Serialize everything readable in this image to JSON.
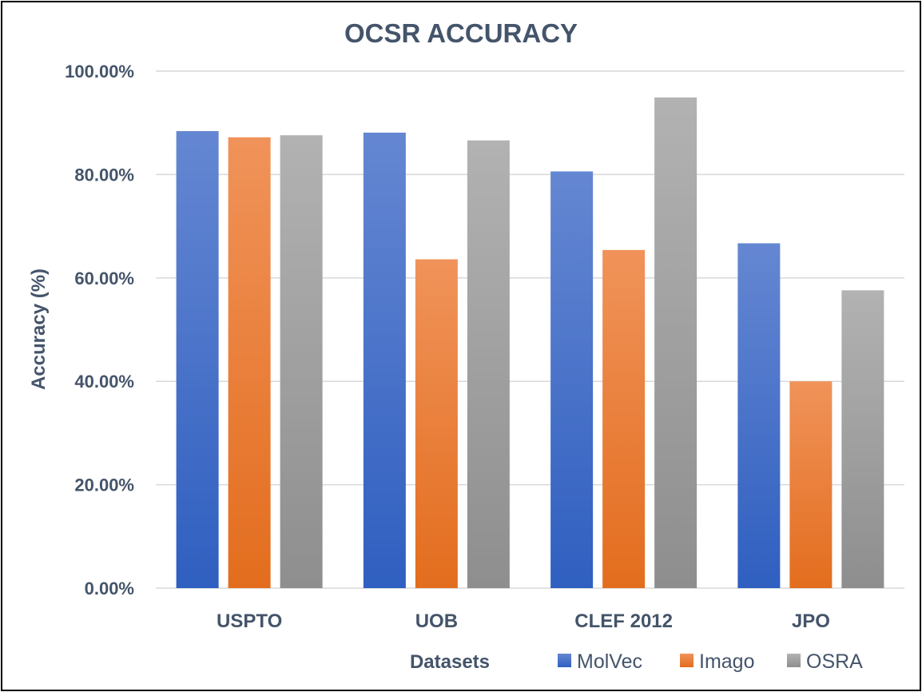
{
  "chart_data": {
    "type": "bar",
    "title": "OCSR ACCURACY",
    "xlabel": "Datasets",
    "ylabel": "Accuracy (%)",
    "categories": [
      "USPTO",
      "UOB",
      "CLEF 2012",
      "JPO"
    ],
    "series": [
      {
        "name": "MolVec",
        "values": [
          88.4,
          88.1,
          80.6,
          66.7
        ],
        "color": "#4472c4"
      },
      {
        "name": "Imago",
        "values": [
          87.2,
          63.6,
          65.4,
          40.0
        ],
        "color": "#ed7d31"
      },
      {
        "name": "OSRA",
        "values": [
          87.6,
          86.6,
          94.9,
          57.6
        ],
        "color": "#a5a5a5"
      }
    ],
    "ylim": [
      0,
      100
    ],
    "yticks": [
      "0.00%",
      "20.00%",
      "40.00%",
      "60.00%",
      "80.00%",
      "100.00%"
    ],
    "grid": true,
    "legend": "bottom-right"
  }
}
